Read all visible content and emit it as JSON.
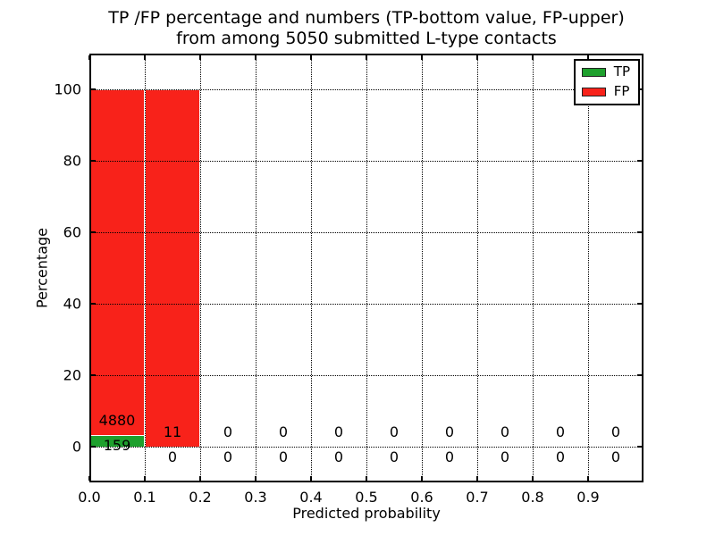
{
  "chart_data": {
    "type": "bar",
    "stacked": true,
    "title_line1": "TP /FP percentage and numbers (TP-bottom value, FP-upper)",
    "title_line2": "from among 5050 submitted L-type contacts",
    "xlabel": "Predicted probability",
    "ylabel": "Percentage",
    "xlim": [
      0.0,
      1.0
    ],
    "ylim": [
      -10,
      110
    ],
    "grid": true,
    "bin_edges": [
      0.0,
      0.1,
      0.2,
      0.3,
      0.4,
      0.5,
      0.6,
      0.7,
      0.8,
      0.9,
      1.0
    ],
    "x_ticks": {
      "values": [
        0.0,
        0.1,
        0.2,
        0.3,
        0.4,
        0.5,
        0.6,
        0.7,
        0.8,
        0.9
      ],
      "labels": [
        "0.0",
        "0.1",
        "0.2",
        "0.3",
        "0.4",
        "0.5",
        "0.6",
        "0.7",
        "0.8",
        "0.9"
      ]
    },
    "y_ticks": {
      "values": [
        0,
        20,
        40,
        60,
        80,
        100
      ],
      "labels": [
        "0",
        "20",
        "40",
        "60",
        "80",
        "100"
      ]
    },
    "series": [
      {
        "name": "TP",
        "color": "#1ea02d",
        "counts": [
          159,
          0,
          0,
          0,
          0,
          0,
          0,
          0,
          0,
          0
        ],
        "percent": [
          3.16,
          0,
          0,
          0,
          0,
          0,
          0,
          0,
          0,
          0
        ],
        "label_offset": -5
      },
      {
        "name": "FP",
        "color": "#f8221a",
        "counts": [
          4880,
          11,
          0,
          0,
          0,
          0,
          0,
          0,
          0,
          0
        ],
        "percent": [
          96.84,
          100,
          0,
          0,
          0,
          0,
          0,
          0,
          0,
          0
        ],
        "label_offset": 2
      }
    ],
    "legend": {
      "position": "upper right"
    }
  }
}
